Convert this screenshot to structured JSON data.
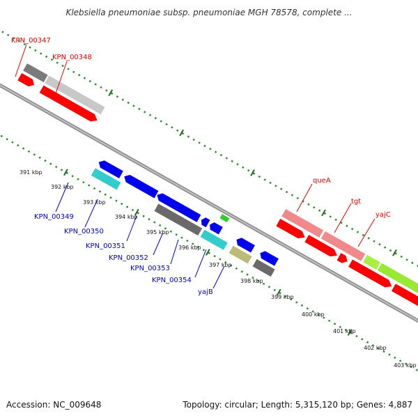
{
  "title": "Klebsiella pneumoniae subsp. pneumoniae MGH 78578, complete ...",
  "footer": {
    "accession": "Accession: NC_009648",
    "summary": "Topology: circular; Length: 5,315,120 bp; Genes: 4,887"
  },
  "colors": {
    "forward_label": "#dd0000",
    "reverse_label": "#0000bb",
    "tick_marks": "#338833",
    "backbone": "#8a8a8a"
  },
  "ticks": [
    "391 kbp",
    "392 kbp",
    "393 kbp",
    "394 kbp",
    "395 kbp",
    "396 kbp",
    "397 kbp",
    "398 kbp",
    "399 kbp",
    "400 kbp",
    "401 kbp",
    "402 kbp",
    "403 kbp"
  ],
  "forward_genes": [
    "KPN_00347",
    "KPN_00348",
    "queA",
    "tgt",
    "yajC"
  ],
  "reverse_genes": [
    "KPN_00349",
    "KPN_00350",
    "KPN_00351",
    "KPN_00352",
    "KPN_00353",
    "KPN_00354",
    "yajB"
  ]
}
